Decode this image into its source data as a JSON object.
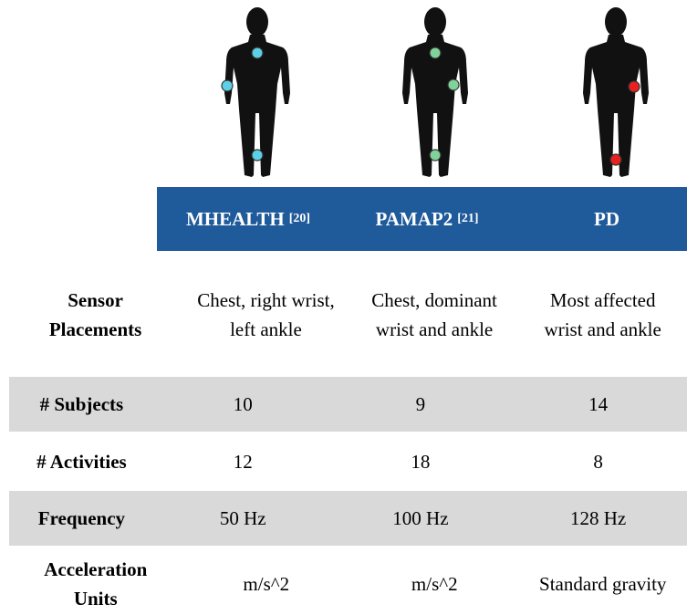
{
  "columns": [
    {
      "name": "MHEALTH",
      "ref": "[20]"
    },
    {
      "name": "PAMAP2",
      "ref": "[21]"
    },
    {
      "name": "PD"
    }
  ],
  "rows": [
    {
      "label": "Sensor Placements",
      "cells": [
        "Chest, right wrist, left ankle",
        "Chest, dominant wrist and ankle",
        "Most affected wrist and ankle"
      ]
    },
    {
      "label": "# Subjects",
      "cells": [
        "10",
        "9",
        "14"
      ]
    },
    {
      "label": "# Activities",
      "cells": [
        "12",
        "18",
        "8"
      ]
    },
    {
      "label": "Frequency",
      "cells": [
        "50 Hz",
        "100 Hz",
        "128 Hz"
      ]
    },
    {
      "label": "Acceleration Units",
      "cells": [
        "m/s^2",
        "m/s^2",
        "Standard gravity"
      ]
    }
  ]
}
